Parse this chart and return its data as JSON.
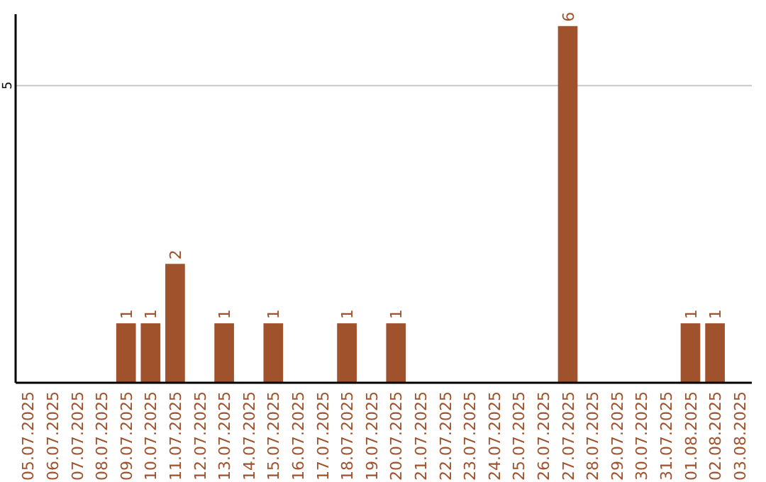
{
  "chart_data": {
    "type": "bar",
    "categories": [
      "05.07.2025",
      "06.07.2025",
      "07.07.2025",
      "08.07.2025",
      "09.07.2025",
      "10.07.2025",
      "11.07.2025",
      "12.07.2025",
      "13.07.2025",
      "14.07.2025",
      "15.07.2025",
      "16.07.2025",
      "17.07.2025",
      "18.07.2025",
      "19.07.2025",
      "20.07.2025",
      "21.07.2025",
      "22.07.2025",
      "23.07.2025",
      "24.07.2025",
      "25.07.2025",
      "26.07.2025",
      "27.07.2025",
      "28.07.2025",
      "29.07.2025",
      "30.07.2025",
      "31.07.2025",
      "01.08.2025",
      "02.08.2025",
      "03.08.2025"
    ],
    "values": [
      0,
      0,
      0,
      0,
      1,
      1,
      2,
      0,
      1,
      0,
      1,
      0,
      0,
      1,
      0,
      1,
      0,
      0,
      0,
      0,
      0,
      0,
      6,
      0,
      0,
      0,
      0,
      1,
      1,
      0
    ],
    "value_labels": [
      null,
      null,
      null,
      null,
      "1",
      "1",
      "2",
      null,
      "1",
      null,
      "1",
      null,
      null,
      "1",
      null,
      "1",
      null,
      null,
      null,
      null,
      null,
      null,
      "6",
      null,
      null,
      null,
      null,
      "1",
      "1",
      null
    ],
    "color": "#a0522d",
    "ylim": [
      0,
      6.2
    ],
    "yticks": [
      5
    ],
    "grid": "y"
  }
}
